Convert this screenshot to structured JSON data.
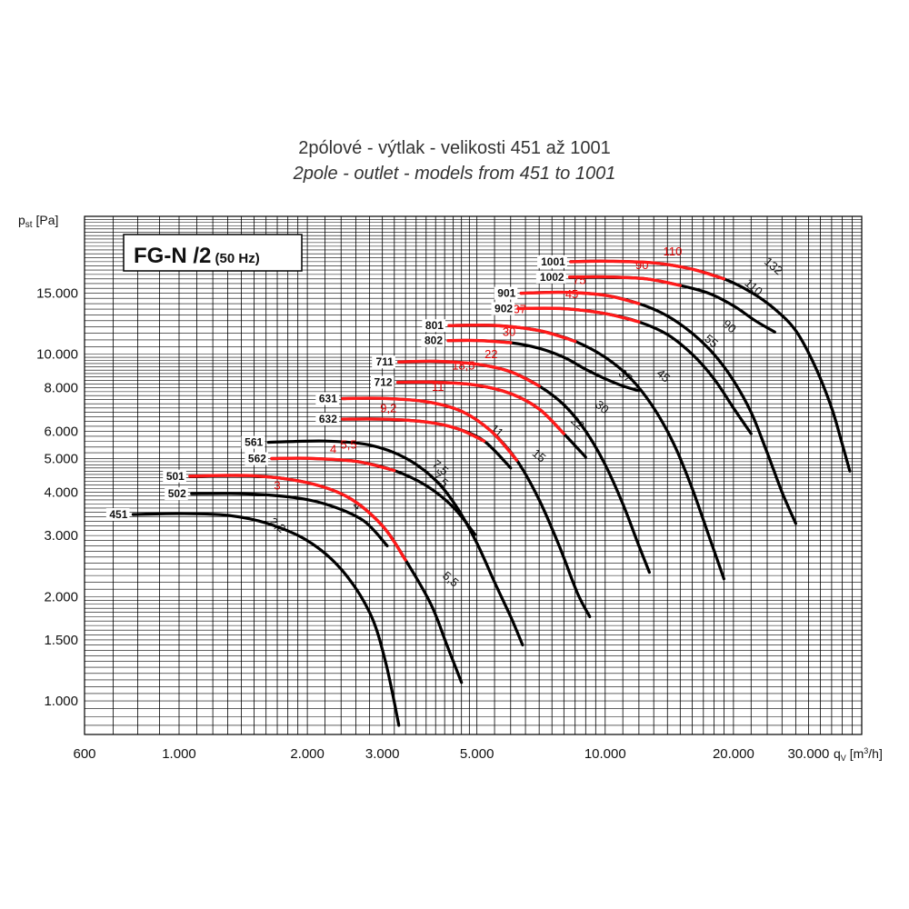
{
  "header": {
    "title_cz": "2pólové - výtlak - velikosti 451 až 1001",
    "title_en": "2pole - outlet - models from 451 to 1001"
  },
  "chart_data": {
    "type": "line",
    "title": "2pólové - výtlak - velikosti 451 až 1001 / 2pole - outlet - models from 451 to 1001",
    "badge": {
      "main": "FG-N /2",
      "sub": "(50 Hz)"
    },
    "xlabel": {
      "pre": "q",
      "sub": "V",
      "mid": " [m",
      "sup": "3",
      "post": "/h]"
    },
    "ylabel": {
      "pre": "p",
      "sub": "st",
      "post": " [Pa]"
    },
    "xscale": "log",
    "yscale": "log",
    "xlim": [
      600,
      40000
    ],
    "ylim": [
      800,
      25000
    ],
    "grid": true,
    "colors": {
      "line": "#000000",
      "highlight": "#ff1a1a",
      "grid": "#000000",
      "power_red": "#e00000"
    },
    "x_ticks": [
      {
        "v": 600,
        "label": "600"
      },
      {
        "v": 1000,
        "label": "1.000"
      },
      {
        "v": 2000,
        "label": "2.000"
      },
      {
        "v": 3000,
        "label": "3.000"
      },
      {
        "v": 5000,
        "label": "5.000"
      },
      {
        "v": 10000,
        "label": "10.000"
      },
      {
        "v": 20000,
        "label": "20.000"
      },
      {
        "v": 30000,
        "label": "30.000"
      }
    ],
    "y_ticks": [
      {
        "v": 1000,
        "label": "1.000"
      },
      {
        "v": 1500,
        "label": "1.500"
      },
      {
        "v": 2000,
        "label": "2.000"
      },
      {
        "v": 3000,
        "label": "3.000"
      },
      {
        "v": 4000,
        "label": "4.000"
      },
      {
        "v": 5000,
        "label": "5.000"
      },
      {
        "v": 6000,
        "label": "6.000"
      },
      {
        "v": 8000,
        "label": "8.000"
      },
      {
        "v": 10000,
        "label": "10.000"
      },
      {
        "v": 15000,
        "label": "15.000"
      }
    ],
    "series": [
      {
        "name": "451",
        "points": [
          [
            780,
            3450
          ],
          [
            1000,
            3470
          ],
          [
            1300,
            3430
          ],
          [
            1600,
            3260
          ],
          [
            2000,
            2900
          ],
          [
            2400,
            2400
          ],
          [
            2800,
            1800
          ],
          [
            3050,
            1300
          ],
          [
            3280,
            850
          ]
        ],
        "red_range": null,
        "power_labels": [
          {
            "text": "2,2",
            "color": "black",
            "x": 1680,
            "y": 3150
          }
        ]
      },
      {
        "name": "502",
        "points": [
          [
            1070,
            3960
          ],
          [
            1400,
            3960
          ],
          [
            1800,
            3880
          ],
          [
            2200,
            3700
          ],
          [
            2700,
            3320
          ],
          [
            3080,
            2800
          ]
        ],
        "red_range": null,
        "power_labels": [
          {
            "text": "4",
            "color": "black",
            "x": 2580,
            "y": 3580
          }
        ]
      },
      {
        "name": "501",
        "points": [
          [
            1060,
            4450
          ],
          [
            1500,
            4460
          ],
          [
            2000,
            4260
          ],
          [
            2500,
            3860
          ],
          [
            3000,
            3200
          ],
          [
            3400,
            2550
          ],
          [
            3900,
            1900
          ],
          [
            4250,
            1450
          ],
          [
            4600,
            1130
          ]
        ],
        "red_range": [
          0,
          5
        ],
        "power_labels": [
          {
            "text": "3",
            "color": "red",
            "x": 1700,
            "y": 4070
          },
          {
            "text": "5,5",
            "color": "black",
            "x": 4280,
            "y": 2200
          }
        ]
      },
      {
        "name": "562",
        "points": [
          [
            1650,
            5000
          ],
          [
            2000,
            5010
          ],
          [
            2600,
            4910
          ],
          [
            3200,
            4620
          ],
          [
            3800,
            4180
          ],
          [
            4400,
            3620
          ],
          [
            4950,
            3020
          ]
        ],
        "red_range": [
          0,
          3
        ],
        "power_labels": [
          {
            "text": "4",
            "color": "red",
            "x": 2300,
            "y": 5180
          },
          {
            "text": "7,5",
            "color": "black",
            "x": 4050,
            "y": 4260
          }
        ]
      },
      {
        "name": "561",
        "points": [
          [
            1620,
            5570
          ],
          [
            2200,
            5620
          ],
          [
            2800,
            5470
          ],
          [
            3400,
            5020
          ],
          [
            4000,
            4330
          ],
          [
            4500,
            3600
          ],
          [
            5000,
            2850
          ],
          [
            5500,
            2200
          ],
          [
            6000,
            1750
          ],
          [
            6400,
            1450
          ]
        ],
        "red_range": null,
        "power_labels": [
          {
            "text": "5,5",
            "color": "red",
            "x": 2500,
            "y": 5350
          },
          {
            "text": "7,5",
            "color": "black",
            "x": 4050,
            "y": 4620
          }
        ]
      },
      {
        "name": "632",
        "points": [
          [
            2420,
            6500
          ],
          [
            3000,
            6500
          ],
          [
            3800,
            6380
          ],
          [
            4500,
            6100
          ],
          [
            5200,
            5620
          ],
          [
            6000,
            4700
          ]
        ],
        "red_range": [
          0,
          4
        ],
        "power_labels": [
          {
            "text": "9,2",
            "color": "red",
            "x": 3100,
            "y": 6800
          },
          {
            "text": "11",
            "color": "black",
            "x": 5500,
            "y": 5900
          }
        ]
      },
      {
        "name": "631",
        "points": [
          [
            2420,
            7450
          ],
          [
            3000,
            7460
          ],
          [
            3800,
            7300
          ],
          [
            4600,
            6850
          ],
          [
            5400,
            6000
          ],
          [
            6200,
            4950
          ],
          [
            7000,
            3800
          ],
          [
            7800,
            2800
          ],
          [
            8600,
            2050
          ],
          [
            9200,
            1750
          ]
        ],
        "red_range": [
          0,
          5
        ],
        "power_labels": [
          {
            "text": "11",
            "color": "red",
            "x": 4050,
            "y": 7850
          },
          {
            "text": "15",
            "color": "black",
            "x": 6900,
            "y": 5000
          }
        ]
      },
      {
        "name": "712",
        "points": [
          [
            3260,
            8300
          ],
          [
            4000,
            8310
          ],
          [
            5000,
            8140
          ],
          [
            6000,
            7700
          ],
          [
            7000,
            6950
          ],
          [
            8000,
            5900
          ],
          [
            9000,
            5050
          ]
        ],
        "red_range": [
          0,
          5
        ],
        "power_labels": [
          {
            "text": "18,5",
            "color": "red",
            "x": 4650,
            "y": 9050
          },
          {
            "text": "22",
            "color": "black",
            "x": 8500,
            "y": 6200
          }
        ]
      },
      {
        "name": "711",
        "points": [
          [
            3280,
            9500
          ],
          [
            4000,
            9540
          ],
          [
            5000,
            9360
          ],
          [
            6000,
            8900
          ],
          [
            7000,
            8100
          ],
          [
            8000,
            7150
          ],
          [
            9000,
            6000
          ],
          [
            10000,
            4800
          ],
          [
            11000,
            3700
          ],
          [
            12000,
            2800
          ],
          [
            12700,
            2350
          ]
        ],
        "red_range": [
          0,
          4
        ],
        "power_labels": [
          {
            "text": "22",
            "color": "red",
            "x": 5400,
            "y": 9750
          },
          {
            "text": "30",
            "color": "black",
            "x": 9700,
            "y": 6900
          }
        ]
      },
      {
        "name": "802",
        "points": [
          [
            4280,
            10950
          ],
          [
            5000,
            10960
          ],
          [
            6000,
            10800
          ],
          [
            7000,
            10400
          ],
          [
            8000,
            9800
          ],
          [
            9000,
            9050
          ],
          [
            10000,
            8500
          ],
          [
            11000,
            8100
          ],
          [
            12000,
            7850
          ]
        ],
        "red_range": [
          0,
          2
        ],
        "power_labels": [
          {
            "text": "30",
            "color": "red",
            "x": 5950,
            "y": 11300
          },
          {
            "text": "37",
            "color": "black",
            "x": 11000,
            "y": 8500
          }
        ]
      },
      {
        "name": "801",
        "points": [
          [
            4300,
            12100
          ],
          [
            5500,
            12110
          ],
          [
            7000,
            11700
          ],
          [
            8500,
            10900
          ],
          [
            10000,
            9800
          ],
          [
            11500,
            8500
          ],
          [
            13000,
            7000
          ],
          [
            14500,
            5500
          ],
          [
            16000,
            4100
          ],
          [
            17500,
            3000
          ],
          [
            19000,
            2250
          ]
        ],
        "red_range": [
          0,
          3
        ],
        "power_labels": [
          {
            "text": "37",
            "color": "red",
            "x": 6300,
            "y": 13150
          },
          {
            "text": "45",
            "color": "black",
            "x": 13500,
            "y": 8500
          }
        ]
      },
      {
        "name": "902",
        "points": [
          [
            6250,
            13550
          ],
          [
            8000,
            13540
          ],
          [
            10000,
            13100
          ],
          [
            12000,
            12400
          ],
          [
            14000,
            11400
          ],
          [
            16000,
            10000
          ],
          [
            18000,
            8500
          ],
          [
            20000,
            7000
          ],
          [
            22000,
            5900
          ]
        ],
        "red_range": [
          0,
          3
        ],
        "power_labels": [
          {
            "text": "45",
            "color": "red",
            "x": 8350,
            "y": 14500
          },
          {
            "text": "55",
            "color": "black",
            "x": 17500,
            "y": 10700
          }
        ]
      },
      {
        "name": "901",
        "points": [
          [
            6350,
            15000
          ],
          [
            8000,
            15090
          ],
          [
            10000,
            14800
          ],
          [
            12000,
            14000
          ],
          [
            14000,
            12900
          ],
          [
            16000,
            11500
          ],
          [
            18000,
            10000
          ],
          [
            20000,
            8400
          ],
          [
            22000,
            6800
          ],
          [
            24000,
            5200
          ],
          [
            26000,
            4000
          ],
          [
            28000,
            3250
          ]
        ],
        "red_range": [
          0,
          3
        ],
        "power_labels": [
          {
            "text": "75",
            "color": "red",
            "x": 8700,
            "y": 15950
          },
          {
            "text": "90",
            "color": "black",
            "x": 19300,
            "y": 11800
          }
        ]
      },
      {
        "name": "1002",
        "points": [
          [
            8250,
            16700
          ],
          [
            10000,
            16720
          ],
          [
            12500,
            16500
          ],
          [
            15000,
            15800
          ],
          [
            17500,
            15000
          ],
          [
            20000,
            13800
          ],
          [
            22500,
            12500
          ],
          [
            25000,
            11600
          ]
        ],
        "red_range": [
          0,
          3
        ],
        "power_labels": [
          {
            "text": "90",
            "color": "red",
            "x": 12200,
            "y": 17600
          },
          {
            "text": "110",
            "color": "black",
            "x": 22000,
            "y": 15300
          }
        ]
      },
      {
        "name": "1001",
        "points": [
          [
            8300,
            18500
          ],
          [
            10000,
            18560
          ],
          [
            13000,
            18350
          ],
          [
            16000,
            17600
          ],
          [
            19000,
            16500
          ],
          [
            22000,
            15100
          ],
          [
            25000,
            13500
          ],
          [
            28000,
            11700
          ],
          [
            31000,
            9300
          ],
          [
            34000,
            7000
          ],
          [
            36000,
            5500
          ],
          [
            37500,
            4600
          ]
        ],
        "red_range": [
          0,
          4
        ],
        "power_labels": [
          {
            "text": "110",
            "color": "red",
            "x": 14400,
            "y": 19300
          },
          {
            "text": "132",
            "color": "black",
            "x": 24500,
            "y": 17600
          }
        ]
      }
    ]
  }
}
